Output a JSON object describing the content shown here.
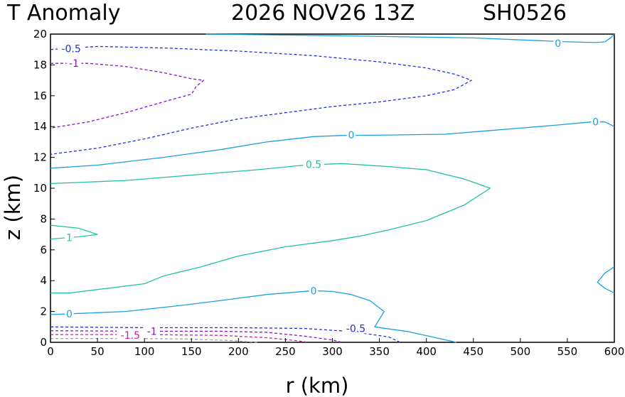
{
  "chart_data": {
    "type": "contour",
    "title_parts": [
      "T Anomaly",
      "2026 NOV26 13Z",
      "SH0526"
    ],
    "xlabel": "r (km)",
    "ylabel": "z (km)",
    "xlim": [
      0,
      600
    ],
    "ylim": [
      0,
      20
    ],
    "xticks": [
      0,
      50,
      100,
      150,
      200,
      250,
      300,
      350,
      400,
      450,
      500,
      550,
      600
    ],
    "yticks": [
      0,
      2,
      4,
      6,
      8,
      10,
      12,
      14,
      16,
      18,
      20
    ],
    "colors": {
      "zero": "#1aa0e0",
      "pos_half": "#20c0a8",
      "pos_one": "#20c8a0",
      "neg_half": "#2030e0",
      "neg_one": "#8a10c8",
      "neg_onehalf": "#c020a8",
      "neg_two": "#a0a0a0"
    },
    "contours": [
      {
        "name": "contour-0-top",
        "level": "0",
        "color": "zero",
        "dashed": false,
        "points": [
          [
            165,
            20
          ],
          [
            300,
            19.9
          ],
          [
            450,
            19.75
          ],
          [
            550,
            19.5
          ],
          [
            580,
            19.45
          ],
          [
            590,
            19.5
          ],
          [
            597,
            19.8
          ],
          [
            600,
            20
          ]
        ]
      },
      {
        "name": "contour-0-upper",
        "level": "0",
        "color": "zero",
        "dashed": false,
        "points": [
          [
            0,
            11.3
          ],
          [
            50,
            11.5
          ],
          [
            120,
            12.0
          ],
          [
            180,
            12.5
          ],
          [
            230,
            13.0
          ],
          [
            280,
            13.35
          ],
          [
            310,
            13.42
          ],
          [
            360,
            13.45
          ],
          [
            420,
            13.5
          ],
          [
            460,
            13.7
          ],
          [
            500,
            13.9
          ],
          [
            540,
            14.1
          ],
          [
            575,
            14.3
          ],
          [
            590,
            14.3
          ],
          [
            600,
            14.0
          ]
        ]
      },
      {
        "name": "contour-0-right",
        "level": "0",
        "color": "zero",
        "dashed": false,
        "points": [
          [
            600,
            4.9
          ],
          [
            590,
            4.5
          ],
          [
            582,
            3.9
          ],
          [
            590,
            3.5
          ],
          [
            600,
            3.2
          ]
        ]
      },
      {
        "name": "contour-0-lower",
        "level": "0",
        "color": "zero",
        "dashed": false,
        "points": [
          [
            0,
            1.8
          ],
          [
            40,
            1.9
          ],
          [
            80,
            2.0
          ],
          [
            140,
            2.4
          ],
          [
            180,
            2.7
          ],
          [
            230,
            3.1
          ],
          [
            280,
            3.35
          ],
          [
            300,
            3.3
          ],
          [
            320,
            3.1
          ],
          [
            340,
            2.7
          ],
          [
            355,
            2.0
          ],
          [
            350,
            1.5
          ],
          [
            345,
            1.0
          ],
          [
            380,
            0.7
          ],
          [
            410,
            0.3
          ],
          [
            432,
            0
          ]
        ]
      },
      {
        "name": "contour-half-pos",
        "level": "0.5",
        "color": "pos_half",
        "dashed": false,
        "points": [
          [
            0,
            10.3
          ],
          [
            80,
            10.5
          ],
          [
            160,
            10.9
          ],
          [
            220,
            11.2
          ],
          [
            270,
            11.5
          ],
          [
            310,
            11.6
          ],
          [
            360,
            11.4
          ],
          [
            400,
            11.2
          ],
          [
            440,
            10.6
          ],
          [
            468,
            10.0
          ],
          [
            440,
            8.9
          ],
          [
            400,
            7.9
          ],
          [
            360,
            7.3
          ],
          [
            330,
            6.9
          ],
          [
            300,
            6.6
          ],
          [
            250,
            6.2
          ],
          [
            200,
            5.6
          ],
          [
            160,
            4.9
          ],
          [
            120,
            4.3
          ],
          [
            100,
            3.8
          ],
          [
            60,
            3.5
          ],
          [
            20,
            3.2
          ],
          [
            0,
            3.2
          ]
        ]
      },
      {
        "name": "contour-one-pos",
        "level": "1",
        "color": "pos_one",
        "dashed": false,
        "points": [
          [
            0,
            7.6
          ],
          [
            30,
            7.4
          ],
          [
            50,
            7.0
          ],
          [
            30,
            6.85
          ],
          [
            0,
            6.7
          ]
        ]
      },
      {
        "name": "contour-neg-half-upper",
        "level": "-0.5",
        "color": "neg_half",
        "dashed": true,
        "points": [
          [
            0,
            19.0
          ],
          [
            50,
            19.2
          ],
          [
            120,
            19.1
          ],
          [
            200,
            18.9
          ],
          [
            280,
            18.6
          ],
          [
            350,
            18.2
          ],
          [
            400,
            17.8
          ],
          [
            430,
            17.4
          ],
          [
            448,
            17.0
          ],
          [
            430,
            16.4
          ],
          [
            400,
            16.0
          ],
          [
            350,
            15.6
          ],
          [
            300,
            15.3
          ],
          [
            250,
            14.9
          ],
          [
            200,
            14.5
          ],
          [
            150,
            13.9
          ],
          [
            100,
            13.2
          ],
          [
            50,
            12.6
          ],
          [
            0,
            12.2
          ]
        ]
      },
      {
        "name": "contour-neg-one-upper",
        "level": "-1",
        "color": "neg_one",
        "dashed": true,
        "points": [
          [
            0,
            18.1
          ],
          [
            40,
            18.1
          ],
          [
            80,
            17.9
          ],
          [
            120,
            17.5
          ],
          [
            150,
            17.1
          ],
          [
            163,
            17.0
          ],
          [
            155,
            16.6
          ],
          [
            150,
            16.1
          ],
          [
            120,
            15.6
          ],
          [
            80,
            14.9
          ],
          [
            40,
            14.3
          ],
          [
            0,
            13.9
          ]
        ]
      },
      {
        "name": "contour-neg-half-lower",
        "level": "-0.5",
        "color": "neg_half",
        "dashed": true,
        "points": [
          [
            0,
            1.0
          ],
          [
            100,
            0.95
          ],
          [
            200,
            0.95
          ],
          [
            270,
            0.9
          ],
          [
            320,
            0.7
          ],
          [
            360,
            0.35
          ],
          [
            372,
            0
          ]
        ]
      },
      {
        "name": "contour-neg-one-lower",
        "level": "-1",
        "color": "neg_one",
        "dashed": true,
        "points": [
          [
            0,
            0.75
          ],
          [
            100,
            0.72
          ],
          [
            180,
            0.72
          ],
          [
            230,
            0.65
          ],
          [
            270,
            0.4
          ],
          [
            300,
            0.15
          ],
          [
            310,
            0
          ]
        ]
      },
      {
        "name": "contour-neg-onehalf",
        "level": "-1.5",
        "color": "neg_onehalf",
        "dashed": true,
        "points": [
          [
            0,
            0.5
          ],
          [
            100,
            0.5
          ],
          [
            180,
            0.45
          ],
          [
            230,
            0.3
          ],
          [
            260,
            0.12
          ],
          [
            275,
            0
          ]
        ]
      },
      {
        "name": "contour-neg-two",
        "level": "",
        "color": "neg_two",
        "dashed": true,
        "points": [
          [
            0,
            0.25
          ],
          [
            80,
            0.25
          ],
          [
            140,
            0.22
          ],
          [
            190,
            0.12
          ],
          [
            220,
            0
          ]
        ]
      }
    ],
    "labels": [
      {
        "text": "0",
        "x": 540,
        "y": 19.4,
        "color": "zero"
      },
      {
        "text": "0",
        "x": 580,
        "y": 14.3,
        "color": "zero"
      },
      {
        "text": "0",
        "x": 320,
        "y": 13.45,
        "color": "zero"
      },
      {
        "text": "0",
        "x": 280,
        "y": 3.33,
        "color": "zero"
      },
      {
        "text": "0",
        "x": 20,
        "y": 1.85,
        "color": "zero"
      },
      {
        "text": "0.5",
        "x": 280,
        "y": 11.55,
        "color": "pos_half"
      },
      {
        "text": "1",
        "x": 20,
        "y": 6.8,
        "color": "pos_one"
      },
      {
        "text": "-0.5",
        "x": 22,
        "y": 19.05,
        "color": "neg_half"
      },
      {
        "text": "-1",
        "x": 25,
        "y": 18.1,
        "color": "neg_one"
      },
      {
        "text": "-0.5",
        "x": 325,
        "y": 0.9,
        "color": "neg_half"
      },
      {
        "text": "-1",
        "x": 108,
        "y": 0.72,
        "color": "neg_one"
      },
      {
        "text": "-1.5",
        "x": 85,
        "y": 0.45,
        "color": "neg_onehalf"
      }
    ]
  }
}
